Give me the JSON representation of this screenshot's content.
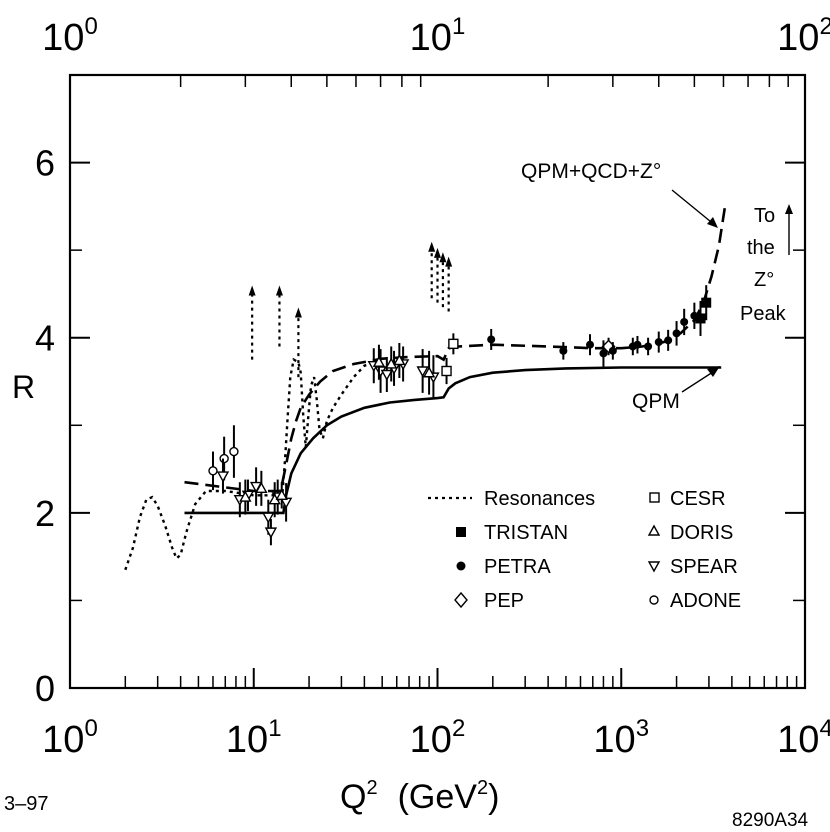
{
  "chart_data": {
    "type": "scatter",
    "xscale": "log",
    "xlim": [
      1,
      10000
    ],
    "ylim": [
      0,
      7
    ],
    "ylabel": "R",
    "xlabel_main": "Q",
    "xlabel_sup": "2",
    "xlabel_units_open": "(GeV",
    "xlabel_units_sup": "2",
    "xlabel_units_close": ")",
    "bottom_ticks": [
      {
        "base": "10",
        "exp": "0",
        "value": 1
      },
      {
        "base": "10",
        "exp": "1",
        "value": 10
      },
      {
        "base": "10",
        "exp": "2",
        "value": 100
      },
      {
        "base": "10",
        "exp": "3",
        "value": 1000
      },
      {
        "base": "10",
        "exp": "4",
        "value": 10000
      }
    ],
    "top_ticks": [
      {
        "base": "10",
        "exp": "0",
        "value": 1
      },
      {
        "base": "10",
        "exp": "1",
        "value": 10
      },
      {
        "base": "10",
        "exp": "2",
        "value": 100
      }
    ],
    "y_ticks": [
      {
        "label": "0",
        "value": 0
      },
      {
        "label": "2",
        "value": 2
      },
      {
        "label": "4",
        "value": 4
      },
      {
        "label": "6",
        "value": 6
      }
    ],
    "y_minor": [
      1,
      3,
      5
    ],
    "footer_left": "3–97",
    "footer_right": "8290A34",
    "annotations": {
      "qcd_label": "QPM+QCD+Z°",
      "qpm_label": "QPM",
      "z_peak": [
        "To",
        "the",
        "Z°",
        "Peak"
      ]
    },
    "legend": [
      {
        "label": "Resonances",
        "marker": "dotted-line"
      },
      {
        "label": "TRISTAN",
        "marker": "filled-square"
      },
      {
        "label": "PETRA",
        "marker": "filled-circle"
      },
      {
        "label": "PEP",
        "marker": "open-diamond"
      },
      {
        "label": "CESR",
        "marker": "open-square"
      },
      {
        "label": "DORIS",
        "marker": "open-triangle-up"
      },
      {
        "label": "SPEAR",
        "marker": "open-triangle-down"
      },
      {
        "label": "ADONE",
        "marker": "open-circle"
      }
    ],
    "curves": {
      "qpm": [
        [
          4.2,
          2.0
        ],
        [
          14.5,
          2.0
        ],
        [
          15,
          2.2
        ],
        [
          16,
          2.45
        ],
        [
          18,
          2.68
        ],
        [
          21,
          2.85
        ],
        [
          25,
          3.0
        ],
        [
          30,
          3.1
        ],
        [
          40,
          3.2
        ],
        [
          55,
          3.26
        ],
        [
          75,
          3.29
        ],
        [
          100,
          3.31
        ],
        [
          108,
          3.32
        ],
        [
          115,
          3.42
        ],
        [
          125,
          3.48
        ],
        [
          150,
          3.55
        ],
        [
          200,
          3.6
        ],
        [
          300,
          3.63
        ],
        [
          500,
          3.65
        ],
        [
          1000,
          3.66
        ],
        [
          3500,
          3.66
        ]
      ],
      "qcd": [
        [
          4.2,
          2.35
        ],
        [
          10,
          2.25
        ],
        [
          14,
          2.25
        ],
        [
          15,
          2.55
        ],
        [
          16,
          2.85
        ],
        [
          17,
          3.05
        ],
        [
          18,
          3.2
        ],
        [
          20,
          3.35
        ],
        [
          23,
          3.5
        ],
        [
          27,
          3.62
        ],
        [
          35,
          3.7
        ],
        [
          50,
          3.76
        ],
        [
          70,
          3.78
        ],
        [
          100,
          3.79
        ],
        [
          108,
          3.75
        ],
        [
          115,
          3.88
        ],
        [
          130,
          3.9
        ],
        [
          200,
          3.92
        ],
        [
          400,
          3.9
        ],
        [
          700,
          3.88
        ],
        [
          1000,
          3.88
        ],
        [
          1300,
          3.9
        ],
        [
          1700,
          3.95
        ],
        [
          2100,
          4.05
        ],
        [
          2500,
          4.2
        ],
        [
          2800,
          4.4
        ],
        [
          3100,
          4.7
        ],
        [
          3400,
          5.05
        ],
        [
          3700,
          5.55
        ]
      ],
      "resonances": [
        [
          2.0,
          1.35
        ],
        [
          2.2,
          1.6
        ],
        [
          2.4,
          1.95
        ],
        [
          2.6,
          2.15
        ],
        [
          2.8,
          2.18
        ],
        [
          3.0,
          2.08
        ],
        [
          3.3,
          1.85
        ],
        [
          3.6,
          1.6
        ],
        [
          3.8,
          1.48
        ],
        [
          4.0,
          1.52
        ],
        [
          4.3,
          1.78
        ],
        [
          4.8,
          2.1
        ],
        [
          5.5,
          2.25
        ],
        [
          7,
          2.25
        ],
        [
          10,
          2.2
        ],
        [
          13,
          2.2
        ],
        [
          14.3,
          2.2
        ],
        [
          14.8,
          2.6
        ],
        [
          15.3,
          3.1
        ],
        [
          15.8,
          3.55
        ],
        [
          16.5,
          3.75
        ],
        [
          17.5,
          3.72
        ],
        [
          18,
          3.6
        ],
        [
          18.6,
          3.1
        ],
        [
          19.2,
          2.75
        ],
        [
          19.8,
          3.1
        ],
        [
          20.5,
          3.45
        ],
        [
          21.3,
          3.55
        ],
        [
          22,
          3.3
        ],
        [
          22.8,
          2.95
        ],
        [
          23.8,
          2.85
        ],
        [
          25,
          3.05
        ],
        [
          27,
          3.2
        ],
        [
          30,
          3.35
        ],
        [
          35,
          3.55
        ],
        [
          40,
          3.68
        ],
        [
          50,
          3.75
        ]
      ]
    },
    "spikes": [
      {
        "x": 9.8,
        "y_from": 3.75,
        "y_to": 4.55
      },
      {
        "x": 13.8,
        "y_from": 3.9,
        "y_to": 4.55
      },
      {
        "x": 17.5,
        "y_from": 3.55,
        "y_to": 4.3
      },
      {
        "x": 93,
        "y_from": 4.45,
        "y_to": 5.05
      },
      {
        "x": 100,
        "y_from": 4.4,
        "y_to": 4.98
      },
      {
        "x": 107,
        "y_from": 4.35,
        "y_to": 4.93
      },
      {
        "x": 115,
        "y_from": 4.3,
        "y_to": 4.88
      }
    ],
    "series": [
      {
        "name": "ADONE",
        "marker": "open-circle",
        "points": [
          [
            6.0,
            2.48,
            0.22
          ],
          [
            6.9,
            2.62,
            0.25
          ],
          [
            7.8,
            2.7,
            0.3
          ]
        ]
      },
      {
        "name": "SPEAR",
        "marker": "open-triangle-down",
        "points": [
          [
            6.8,
            2.42,
            0.2
          ],
          [
            8.4,
            2.15,
            0.2
          ],
          [
            9.3,
            2.2,
            0.18
          ],
          [
            10.3,
            2.3,
            0.22
          ],
          [
            12.0,
            1.95,
            0.2
          ],
          [
            12.4,
            1.78,
            0.15
          ],
          [
            13.5,
            2.18,
            0.2
          ],
          [
            15.0,
            2.12,
            0.22
          ],
          [
            45,
            3.68,
            0.2
          ],
          [
            49,
            3.62,
            0.25
          ],
          [
            53,
            3.58,
            0.2
          ],
          [
            58,
            3.65,
            0.2
          ],
          [
            65,
            3.7,
            0.2
          ],
          [
            83,
            3.62,
            0.25
          ],
          [
            95,
            3.55,
            0.25
          ]
        ]
      },
      {
        "name": "DORIS",
        "marker": "open-triangle-up",
        "points": [
          [
            9.0,
            2.18,
            0.2
          ],
          [
            11.0,
            2.28,
            0.2
          ],
          [
            13.0,
            2.15,
            0.2
          ],
          [
            14.2,
            2.2,
            0.15
          ],
          [
            48,
            3.72,
            0.2
          ],
          [
            56,
            3.7,
            0.2
          ],
          [
            62,
            3.74,
            0.2
          ],
          [
            90,
            3.6,
            0.25
          ]
        ]
      },
      {
        "name": "PEP",
        "marker": "open-diamond",
        "points": [
          [
            853,
            3.9,
            0.1
          ]
        ]
      },
      {
        "name": "CESR",
        "marker": "open-square",
        "points": [
          [
            112,
            3.62,
            0.15
          ],
          [
            122,
            3.93,
            0.12
          ]
        ]
      },
      {
        "name": "PETRA",
        "marker": "filled-circle",
        "points": [
          [
            196,
            3.98,
            0.12
          ],
          [
            484,
            3.85,
            0.1
          ],
          [
            676,
            3.92,
            0.12
          ],
          [
            800,
            3.82,
            0.15
          ],
          [
            900,
            3.85,
            0.1
          ],
          [
            1156,
            3.9,
            0.1
          ],
          [
            1225,
            3.92,
            0.1
          ],
          [
            1400,
            3.9,
            0.1
          ],
          [
            1600,
            3.95,
            0.12
          ],
          [
            1800,
            3.97,
            0.12
          ],
          [
            2000,
            4.05,
            0.14
          ],
          [
            2200,
            4.18,
            0.15
          ],
          [
            2500,
            4.25,
            0.15
          ]
        ]
      },
      {
        "name": "TRISTAN",
        "marker": "filled-square",
        "points": [
          [
            2700,
            4.22,
            0.2
          ],
          [
            2900,
            4.4,
            0.2
          ]
        ]
      }
    ]
  }
}
